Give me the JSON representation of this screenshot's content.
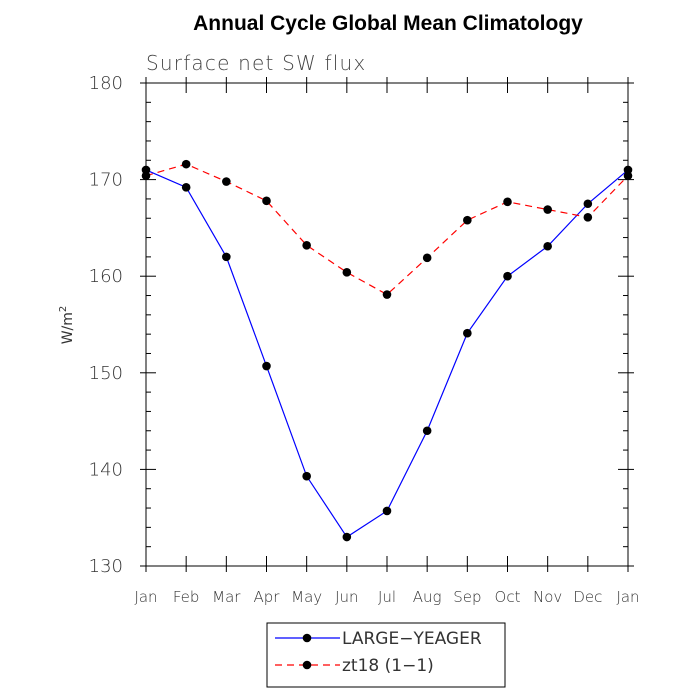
{
  "chart_data": {
    "type": "line",
    "title": "Annual Cycle Global Mean Climatology",
    "subtitle": "Surface net SW flux",
    "ylabel_base": "W/m",
    "ylabel_sup": "2",
    "ylim": [
      130,
      180
    ],
    "yticks": [
      "130",
      "140",
      "150",
      "160",
      "170",
      "180"
    ],
    "categories": [
      "Jan",
      "Feb",
      "Mar",
      "Apr",
      "May",
      "Jun",
      "Jul",
      "Aug",
      "Sep",
      "Oct",
      "Nov",
      "Dec",
      "Jan"
    ],
    "grid": false,
    "legend_position": "bottom",
    "series": [
      {
        "name": "LARGE−YEAGER",
        "color": "#0000ff",
        "dash": "solid",
        "values": [
          171.0,
          169.2,
          162.0,
          150.7,
          139.3,
          133.0,
          135.7,
          144.0,
          154.1,
          160.0,
          163.1,
          167.5,
          171.0
        ]
      },
      {
        "name": "zt18 (1−1)",
        "color": "#ff0000",
        "dash": "dashed",
        "values": [
          170.4,
          171.6,
          169.8,
          167.8,
          163.2,
          160.4,
          158.1,
          161.9,
          165.8,
          167.7,
          166.9,
          166.1,
          170.4
        ]
      }
    ]
  }
}
